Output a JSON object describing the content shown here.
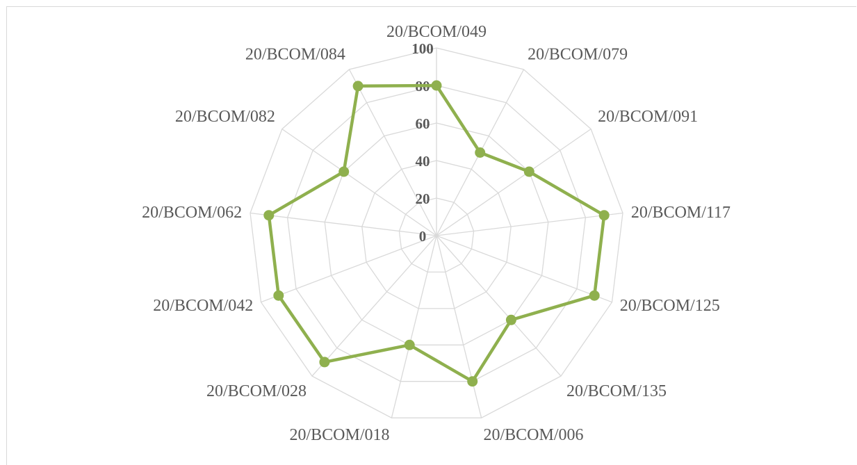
{
  "chart_data": {
    "type": "radar",
    "categories": [
      "20/BCOM/049",
      "20/BCOM/079",
      "20/BCOM/091",
      "20/BCOM/117",
      "20/BCOM/125",
      "20/BCOM/135",
      "20/BCOM/006",
      "20/BCOM/018",
      "20/BCOM/028",
      "20/BCOM/042",
      "20/BCOM/062",
      "20/BCOM/082",
      "20/BCOM/084"
    ],
    "series": [
      {
        "values": [
          80,
          50,
          60,
          90,
          90,
          60,
          80,
          60,
          90,
          90,
          90,
          60,
          90
        ]
      }
    ],
    "rlim": [
      0,
      100
    ],
    "ticks": [
      "0",
      "20",
      "40",
      "60",
      "80",
      "100"
    ],
    "tick_values": [
      0,
      20,
      40,
      60,
      80,
      100
    ],
    "grid": true,
    "legend": "none",
    "colors": {
      "series": "#8fb04e",
      "grid": "#d9d9d9",
      "text": "#595959"
    }
  }
}
